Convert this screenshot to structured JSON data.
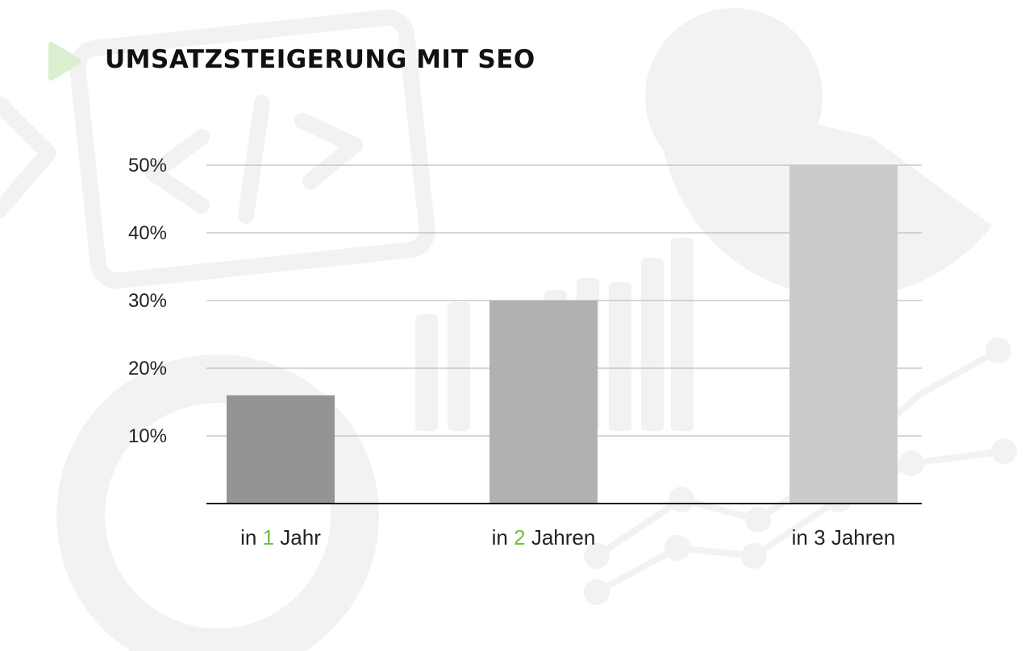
{
  "title": "UMSATZSTEIGERUNG MIT SEO",
  "colors": {
    "accent": "#6fbf3a",
    "play_icon": "#dcefd0",
    "bar_1": "#949494",
    "bar_2": "#b1b1b1",
    "bar_3": "#cbcbcd",
    "grid": "#c8c8c8",
    "axis": "#111111"
  },
  "icons": {
    "header": "play-triangle-icon"
  },
  "chart_data": {
    "type": "bar",
    "title": "UMSATZSTEIGERUNG MIT SEO",
    "xlabel": "",
    "ylabel": "",
    "ylim": [
      0,
      50
    ],
    "yticks": [
      "10%",
      "20%",
      "30%",
      "40%",
      "50%"
    ],
    "grid": true,
    "legend": "none",
    "categories": [
      "in 1 Jahr",
      "in 2 Jahren",
      "in 3 Jahren"
    ],
    "category_parts": [
      {
        "prefix": "in ",
        "number": "1",
        "suffix": " Jahr",
        "number_highlight": true
      },
      {
        "prefix": "in ",
        "number": "2",
        "suffix": " Jahren",
        "number_highlight": true
      },
      {
        "prefix": "in ",
        "number": "3",
        "suffix": " Jahren",
        "number_highlight": false
      }
    ],
    "values": [
      16,
      30,
      50
    ],
    "unit": "%"
  }
}
